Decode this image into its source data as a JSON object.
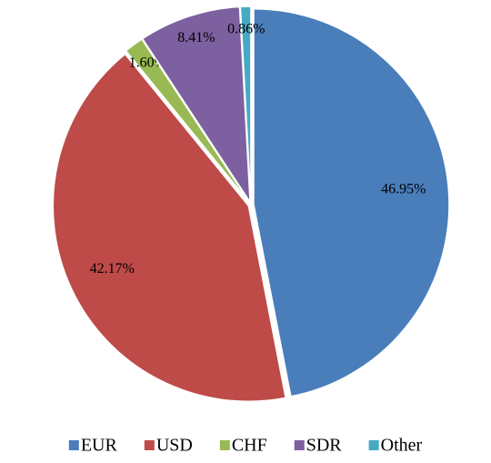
{
  "chart_data": {
    "type": "pie",
    "categories": [
      "EUR",
      "USD",
      "CHF",
      "SDR",
      "Other"
    ],
    "values": [
      46.95,
      42.17,
      1.6,
      8.41,
      0.86
    ],
    "value_labels": [
      "46.95%",
      "42.17%",
      "1.60%",
      "8.41%",
      "0.86%"
    ],
    "colors": [
      "#4a7ebb",
      "#be4b48",
      "#98b954",
      "#7d60a0",
      "#46aac5"
    ],
    "legend": "bottom"
  }
}
